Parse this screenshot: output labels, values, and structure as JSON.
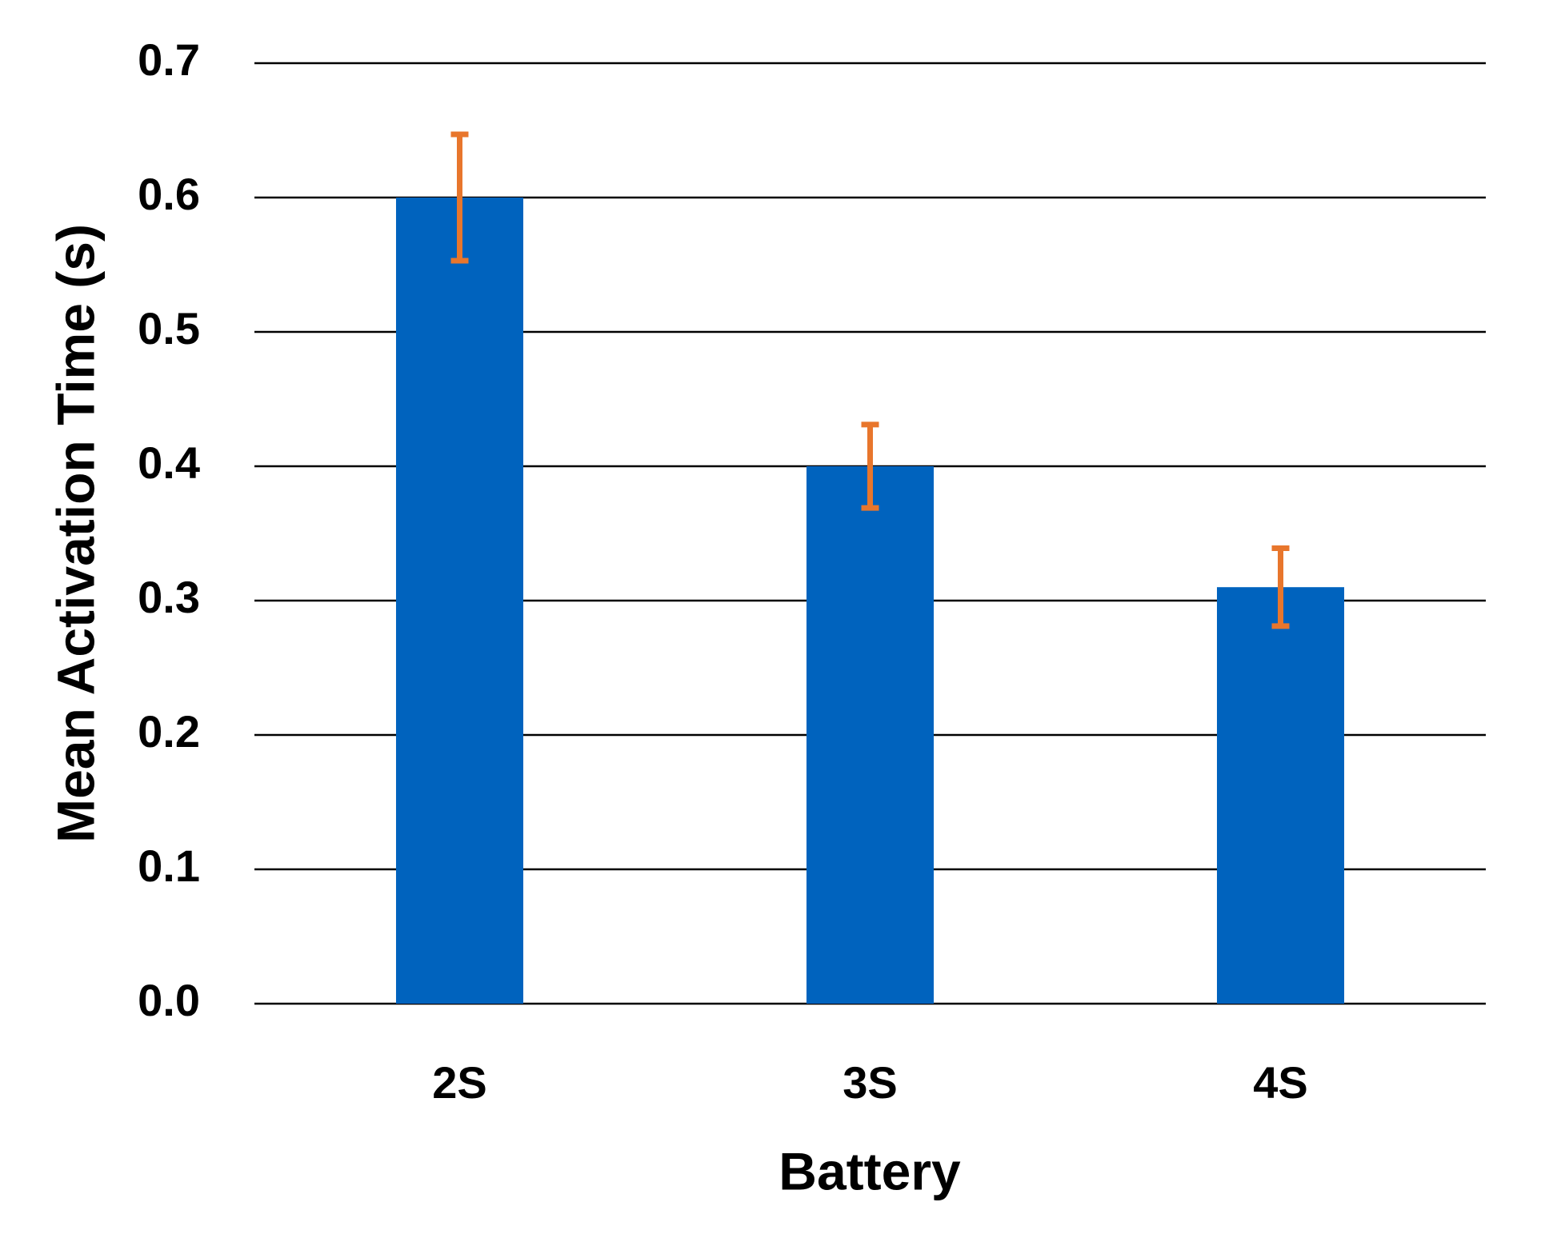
{
  "chart_data": {
    "type": "bar",
    "x_label": "Battery",
    "y_label": "Mean Activation Time (s)",
    "categories": [
      "2S",
      "3S",
      "4S"
    ],
    "values": [
      0.6,
      0.4,
      0.31
    ],
    "errors": [
      0.047,
      0.031,
      0.029
    ],
    "color": "#0063be",
    "error_color": "#e8762c",
    "ylim": [
      0,
      0.7
    ],
    "yticks": [
      {
        "value": 0,
        "label": "0.0"
      },
      0.1,
      0.2,
      0.3,
      0.4,
      0.5,
      0.6,
      0.7
    ],
    "grid": true
  }
}
